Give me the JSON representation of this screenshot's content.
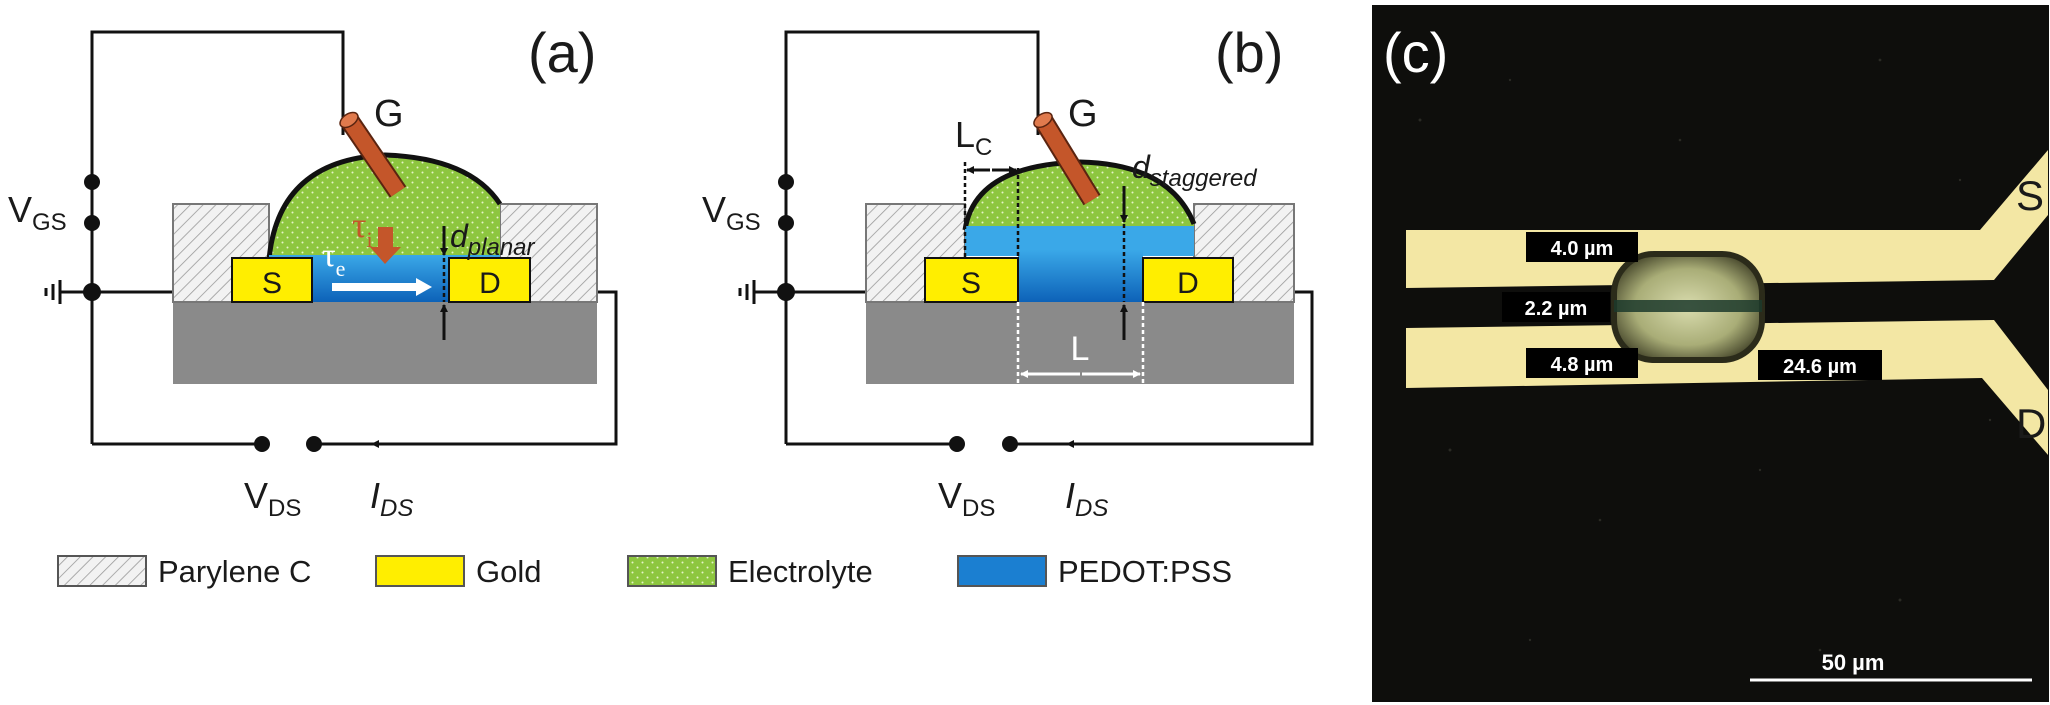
{
  "panels": {
    "a": {
      "label": "(a)",
      "gate": "G",
      "vgs": {
        "main": "V",
        "sub": "GS"
      },
      "vds": {
        "main": "V",
        "sub": "DS"
      },
      "ids": {
        "main": "I",
        "sub": "DS"
      },
      "source": "S",
      "drain": "D",
      "tau_i": {
        "main": "τ",
        "sub": "i"
      },
      "tau_e": {
        "main": "τ",
        "sub": "e"
      },
      "thickness": {
        "main": "d",
        "sub": "planar"
      }
    },
    "b": {
      "label": "(b)",
      "gate": "G",
      "vgs": {
        "main": "V",
        "sub": "GS"
      },
      "vds": {
        "main": "V",
        "sub": "DS"
      },
      "ids": {
        "main": "I",
        "sub": "DS"
      },
      "source": "S",
      "drain": "D",
      "lc": {
        "main": "L",
        "sub": "C"
      },
      "length": "L",
      "thickness": {
        "main": "d",
        "sub": "staggered"
      }
    },
    "c": {
      "label": "(c)",
      "source": "S",
      "drain": "D",
      "measurements": [
        "4.0 µm",
        "2.2 µm",
        "4.8 µm",
        "24.6 µm"
      ],
      "scale_bar": "50 µm"
    }
  },
  "legend": [
    {
      "name": "parylene",
      "label": "Parylene C",
      "color": "#f2f2f2"
    },
    {
      "name": "gold",
      "label": "Gold",
      "color": "#ffee00"
    },
    {
      "name": "electrolyte",
      "label": "Electrolyte",
      "color": "#8dc63f"
    },
    {
      "name": "pedot",
      "label": "PEDOT:PSS",
      "color": "#1b7fd1"
    }
  ],
  "colors": {
    "substrate": "#8a8a8a",
    "gate_electrode": "#c4562a",
    "ion_arrow": "#c4562a",
    "photo_background": "#0e0e0c",
    "photo_gold": "#f3e7a4"
  }
}
